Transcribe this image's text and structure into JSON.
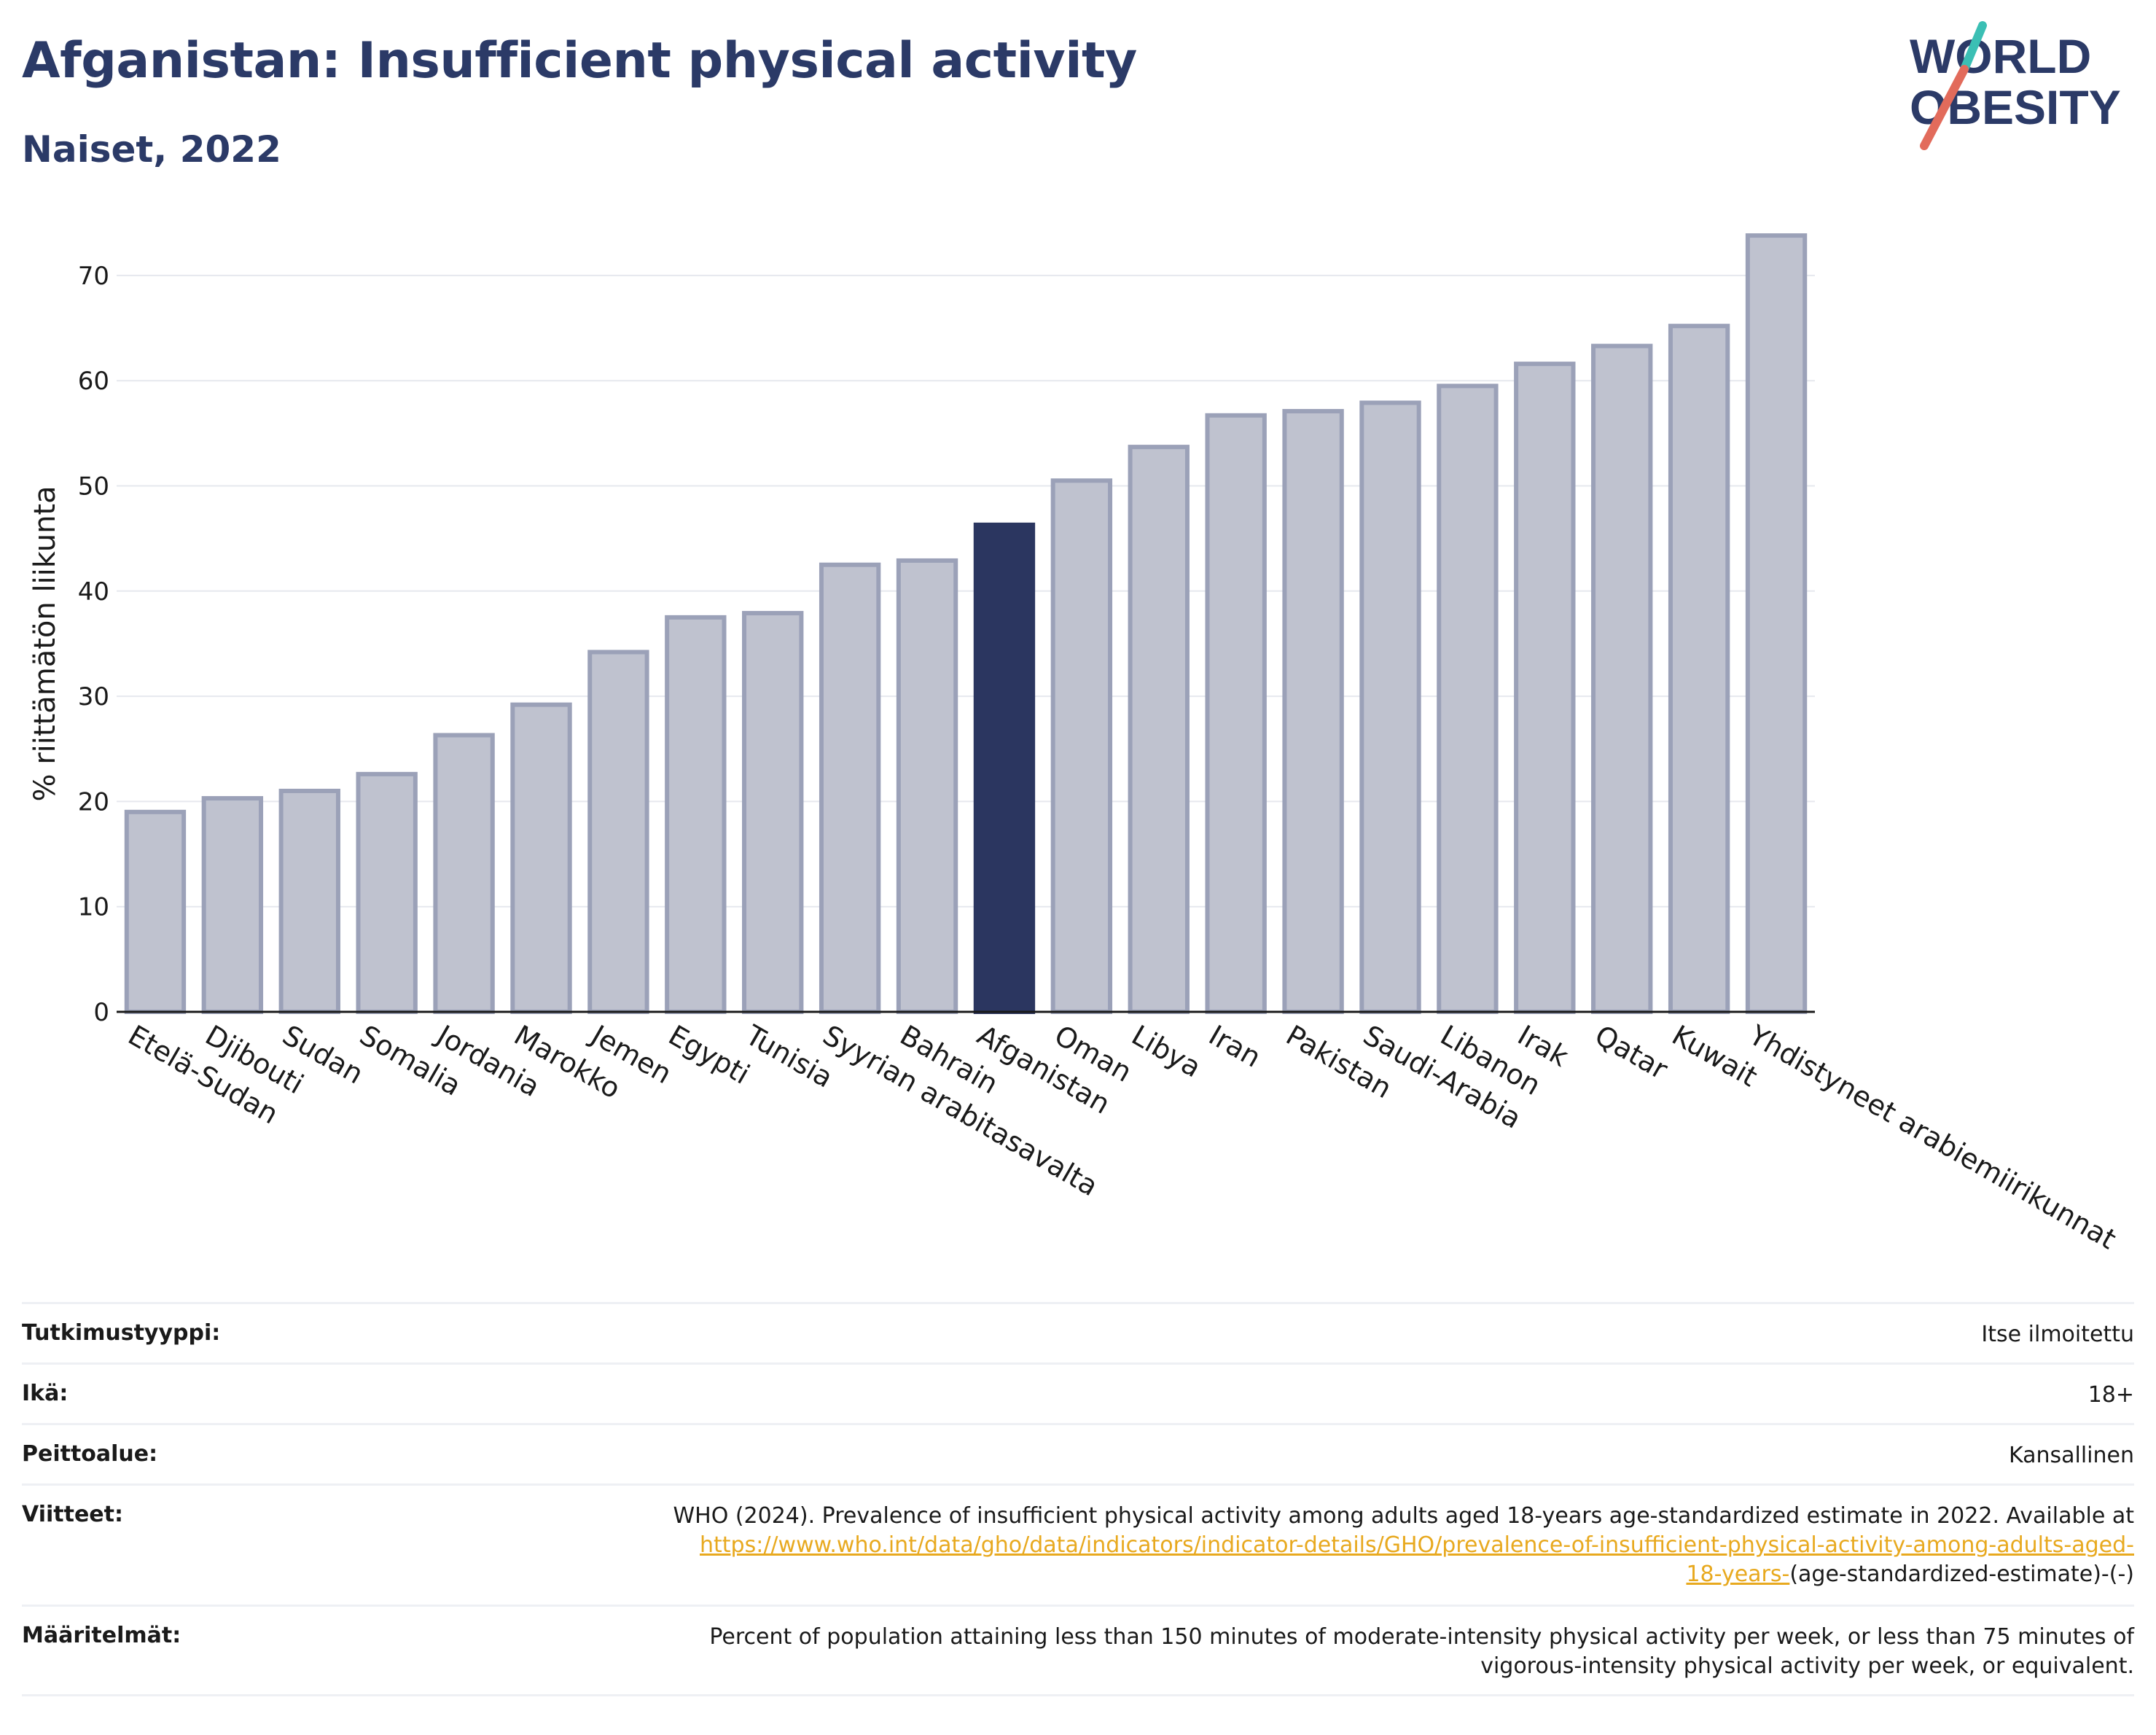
{
  "header": {
    "title": "Afganistan: Insufficient physical activity",
    "subtitle": "Naiset, 2022"
  },
  "logo": {
    "line1": "WORLD",
    "line2": "OBESITY",
    "icon": "slash-logo-icon"
  },
  "colors": {
    "bar": "#bfc2cf",
    "bar_border": "#9ba1b8",
    "highlight": "#2b3660",
    "title": "#2b3a67"
  },
  "chart_data": {
    "type": "bar",
    "ylabel": "% riittämätön liikunta",
    "ylim": [
      0,
      75
    ],
    "yticks": [
      0,
      10,
      20,
      30,
      40,
      50,
      60,
      70
    ],
    "grid": true,
    "highlight": "Afganistan",
    "categories": [
      "Etelä-Sudan",
      "Djibouti",
      "Sudan",
      "Somalia",
      "Jordania",
      "Marokko",
      "Jemen",
      "Egypti",
      "Tunisia",
      "Syyrian arabitasavalta",
      "Bahrain",
      "Afganistan",
      "Oman",
      "Libya",
      "Iran",
      "Pakistan",
      "Saudi-Arabia",
      "Libanon",
      "Irak",
      "Qatar",
      "Kuwait",
      "Yhdistyneet arabiemiirikunnat"
    ],
    "values": [
      19.0,
      20.3,
      21.0,
      22.6,
      26.3,
      29.2,
      34.2,
      37.5,
      37.9,
      42.5,
      42.9,
      46.3,
      50.5,
      53.7,
      56.7,
      57.1,
      57.9,
      59.5,
      61.6,
      63.3,
      65.2,
      73.8
    ]
  },
  "info": {
    "study_type_label": "Tutkimustyyppi:",
    "study_type_value": "Itse ilmoitettu",
    "age_label": "Ikä:",
    "age_value": "18+",
    "coverage_label": "Peittoalue:",
    "coverage_value": "Kansallinen",
    "references_label": "Viitteet:",
    "references_text": "WHO (2024). Prevalence of insufficient physical activity among adults aged 18-years age-standardized estimate in 2022. Available at",
    "references_link_1": "https://www.who.int/data/gho/data/indicators/indicator-details/GHO/prevalence-of-insufficient-physical-activity-among-adults-aged-",
    "references_link_2": "18-years-",
    "references_suffix": "(age-standardized-estimate)-(-)",
    "definitions_label": "Määritelmät:",
    "definitions_line_1": "Percent of population attaining less than 150 minutes of moderate-intensity physical activity per week, or less than 75 minutes of",
    "definitions_line_2": "vigorous-intensity physical activity per week, or equivalent."
  }
}
